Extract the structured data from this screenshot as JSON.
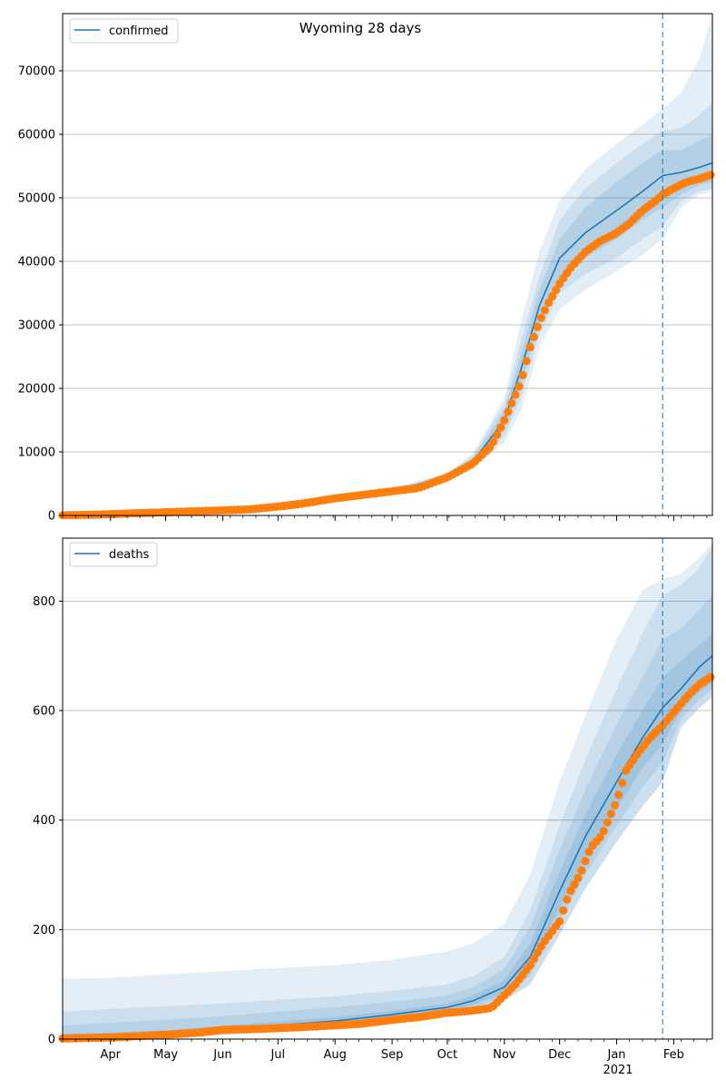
{
  "title": "Wyoming 28 days",
  "colors": {
    "model": "#1f77b4",
    "observed": "#ff7f0e",
    "grid": "#b0b0b0",
    "band": "#1f77b4"
  },
  "chart_data": [
    {
      "type": "line",
      "panel": "top",
      "title": "Wyoming 28 days",
      "legend": [
        "confirmed"
      ],
      "legend_position": "top-left",
      "grid": "horizontal",
      "x_range": [
        "2020-03-06",
        "2021-02-22"
      ],
      "ylim": [
        0,
        79000
      ],
      "y_ticks": [
        0,
        10000,
        20000,
        30000,
        40000,
        50000,
        60000,
        70000
      ],
      "forecast_start": "2021-01-26",
      "series": [
        {
          "name": "confirmed",
          "kind": "model-median-with-bands",
          "x": [
            "2020-03-06",
            "2020-04-01",
            "2020-05-01",
            "2020-06-01",
            "2020-07-01",
            "2020-08-01",
            "2020-09-01",
            "2020-10-01",
            "2020-10-15",
            "2020-11-01",
            "2020-11-10",
            "2020-11-20",
            "2020-12-01",
            "2020-12-15",
            "2021-01-01",
            "2021-01-15",
            "2021-01-26",
            "2021-02-05",
            "2021-02-15",
            "2021-02-22"
          ],
          "values": [
            50,
            200,
            550,
            900,
            1500,
            2700,
            3900,
            6000,
            8500,
            15000,
            23000,
            33000,
            40500,
            44500,
            48000,
            51000,
            53500,
            54000,
            54800,
            55500
          ],
          "band_sd1_lower": [
            0,
            150,
            500,
            850,
            1400,
            2600,
            3700,
            5700,
            8000,
            13500,
            20500,
            30500,
            37500,
            40500,
            43500,
            46500,
            48500,
            50500,
            52000,
            52500
          ],
          "band_sd1_upper": [
            150,
            300,
            650,
            1000,
            1600,
            2900,
            4100,
            6300,
            9000,
            16500,
            25500,
            35500,
            43500,
            48500,
            52500,
            55500,
            57500,
            57500,
            59000,
            60000
          ],
          "band_sd2_lower": [
            0,
            100,
            450,
            800,
            1300,
            2500,
            3600,
            5500,
            7700,
            12500,
            18500,
            28500,
            35000,
            38000,
            40500,
            43500,
            45500,
            49500,
            51000,
            51500
          ],
          "band_sd2_upper": [
            200,
            400,
            750,
            1100,
            1700,
            3000,
            4200,
            6500,
            9400,
            17500,
            27500,
            37500,
            46500,
            51500,
            55500,
            58500,
            60500,
            61000,
            63000,
            65000
          ],
          "band_sd3_lower": [
            0,
            50,
            400,
            750,
            1200,
            2400,
            3500,
            5300,
            7400,
            11500,
            16500,
            26500,
            32500,
            35500,
            38500,
            41000,
            43500,
            48500,
            50500,
            51000
          ],
          "band_sd3_upper": [
            300,
            500,
            850,
            1200,
            1800,
            3100,
            4300,
            6700,
            9800,
            18500,
            30500,
            41500,
            49500,
            54500,
            58500,
            61500,
            64000,
            66500,
            72000,
            79000
          ]
        },
        {
          "name": "",
          "kind": "observed-points",
          "x": [
            "2020-03-06",
            "2020-03-20",
            "2020-04-01",
            "2020-04-15",
            "2020-05-01",
            "2020-05-15",
            "2020-06-01",
            "2020-06-15",
            "2020-07-01",
            "2020-07-15",
            "2020-08-01",
            "2020-08-15",
            "2020-09-01",
            "2020-09-15",
            "2020-10-01",
            "2020-10-15",
            "2020-10-25",
            "2020-11-01",
            "2020-11-10",
            "2020-11-15",
            "2020-11-20",
            "2020-11-25",
            "2020-12-01",
            "2020-12-07",
            "2020-12-15",
            "2020-12-22",
            "2021-01-01",
            "2021-01-08",
            "2021-01-15",
            "2021-01-22",
            "2021-01-26",
            "2021-02-01",
            "2021-02-08",
            "2021-02-15",
            "2021-02-22"
          ],
          "values": [
            30,
            100,
            200,
            350,
            500,
            650,
            800,
            950,
            1400,
            1900,
            2700,
            3200,
            3800,
            4300,
            6000,
            8200,
            11000,
            15000,
            21000,
            26500,
            30500,
            33500,
            36500,
            39000,
            41500,
            43000,
            44500,
            46000,
            48000,
            49500,
            50500,
            51500,
            52500,
            53000,
            53700
          ]
        }
      ]
    },
    {
      "type": "line",
      "panel": "bottom",
      "legend": [
        "deaths"
      ],
      "legend_position": "top-left",
      "grid": "horizontal",
      "x_range": [
        "2020-03-06",
        "2021-02-22"
      ],
      "ylim": [
        0,
        915
      ],
      "y_ticks": [
        0,
        200,
        400,
        600,
        800
      ],
      "x_tick_labels": [
        "Apr",
        "May",
        "Jun",
        "Jul",
        "Aug",
        "Sep",
        "Oct",
        "Nov",
        "Dec",
        "Jan",
        "Feb"
      ],
      "x_tick_dates": [
        "2020-04-01",
        "2020-05-01",
        "2020-06-01",
        "2020-07-01",
        "2020-08-01",
        "2020-09-01",
        "2020-10-01",
        "2020-11-01",
        "2020-12-01",
        "2021-01-01",
        "2021-02-01"
      ],
      "x_year_label": "2021",
      "forecast_start": "2021-01-26",
      "series": [
        {
          "name": "deaths",
          "kind": "model-median-with-bands",
          "x": [
            "2020-03-06",
            "2020-04-01",
            "2020-05-01",
            "2020-06-01",
            "2020-07-01",
            "2020-08-01",
            "2020-09-01",
            "2020-10-01",
            "2020-10-15",
            "2020-11-01",
            "2020-11-15",
            "2020-12-01",
            "2020-12-15",
            "2021-01-01",
            "2021-01-15",
            "2021-01-26",
            "2021-02-05",
            "2021-02-15",
            "2021-02-22"
          ],
          "values": [
            2,
            5,
            10,
            18,
            25,
            33,
            45,
            58,
            70,
            95,
            150,
            270,
            370,
            470,
            550,
            605,
            640,
            680,
            700
          ],
          "band_sd1_lower": [
            0,
            3,
            7,
            14,
            20,
            28,
            40,
            52,
            62,
            85,
            130,
            240,
            330,
            420,
            495,
            540,
            600,
            635,
            650
          ],
          "band_sd1_upper": [
            10,
            12,
            16,
            24,
            32,
            40,
            52,
            65,
            80,
            108,
            175,
            305,
            410,
            520,
            600,
            660,
            690,
            720,
            740
          ],
          "band_sd2_lower": [
            0,
            2,
            5,
            11,
            17,
            24,
            35,
            48,
            57,
            78,
            115,
            215,
            300,
            390,
            460,
            505,
            585,
            620,
            640
          ],
          "band_sd2_upper": [
            25,
            30,
            35,
            42,
            50,
            58,
            68,
            80,
            95,
            128,
            205,
            345,
            455,
            575,
            660,
            730,
            750,
            785,
            810
          ],
          "band_sd3_lower": [
            0,
            1,
            3,
            8,
            14,
            20,
            30,
            44,
            52,
            70,
            100,
            190,
            275,
            360,
            425,
            470,
            570,
            605,
            625
          ],
          "band_sd3_upper": [
            50,
            55,
            60,
            65,
            72,
            78,
            88,
            100,
            115,
            150,
            235,
            390,
            510,
            640,
            740,
            810,
            830,
            860,
            900
          ],
          "band_sd4_upper": [
            110,
            112,
            118,
            124,
            130,
            135,
            145,
            160,
            175,
            210,
            300,
            470,
            590,
            730,
            820,
            840,
            850,
            880,
            905
          ]
        },
        {
          "name": "",
          "kind": "observed-points",
          "x": [
            "2020-03-06",
            "2020-04-01",
            "2020-05-01",
            "2020-05-20",
            "2020-06-01",
            "2020-06-15",
            "2020-07-01",
            "2020-07-15",
            "2020-08-01",
            "2020-08-15",
            "2020-09-01",
            "2020-09-15",
            "2020-10-01",
            "2020-10-15",
            "2020-10-25",
            "2020-11-01",
            "2020-11-07",
            "2020-11-15",
            "2020-11-22",
            "2020-12-01",
            "2020-12-06",
            "2020-12-12",
            "2020-12-18",
            "2020-12-24",
            "2021-01-01",
            "2021-01-06",
            "2021-01-12",
            "2021-01-19",
            "2021-01-26",
            "2021-02-01",
            "2021-02-08",
            "2021-02-15",
            "2021-02-22"
          ],
          "values": [
            1,
            3,
            8,
            12,
            17,
            18,
            20,
            22,
            25,
            28,
            35,
            40,
            48,
            52,
            57,
            80,
            100,
            135,
            175,
            215,
            265,
            300,
            350,
            372,
            435,
            490,
            520,
            550,
            573,
            597,
            625,
            648,
            663
          ]
        }
      ]
    }
  ]
}
